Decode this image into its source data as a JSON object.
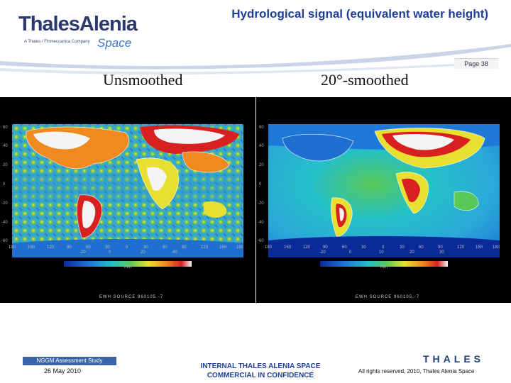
{
  "slide": {
    "title": "Hydrological  signal (equivalent water height)",
    "page_label": "Page 38",
    "column_titles": [
      "Unsmoothed",
      "20°-smoothed"
    ]
  },
  "logo": {
    "word": "ThalesAlenia",
    "sub": "A Thales / Finmeccanica Company",
    "space": "Space"
  },
  "panels": [
    {
      "y_ticks": [
        "60",
        "40",
        "20",
        "0",
        "-20",
        "-40",
        "-60"
      ],
      "x_ticks": [
        "180",
        "150",
        "120",
        "90",
        "60",
        "30",
        "0",
        "30",
        "60",
        "90",
        "120",
        "150",
        "180"
      ],
      "colorbar_ticks": [
        "-20",
        "0",
        "20",
        "40"
      ],
      "colorbar_unit": "mm",
      "source": "EWH SOURCE 960105.-7"
    },
    {
      "y_ticks": [
        "60",
        "40",
        "20",
        "0",
        "-20",
        "-40",
        "-60"
      ],
      "x_ticks": [
        "180",
        "150",
        "120",
        "90",
        "60",
        "30",
        "0",
        "30",
        "60",
        "90",
        "120",
        "150",
        "180"
      ],
      "colorbar_ticks": [
        "-20",
        "0",
        "10",
        "20",
        "30"
      ],
      "colorbar_unit": "mm",
      "source": "EWH SOURCE 960105.-7"
    }
  ],
  "footer": {
    "study": "NGGM Assessment Study",
    "date": "26 May 2010",
    "classification_line1": "INTERNAL THALES ALENIA SPACE",
    "classification_line2": "COMMERCIAL IN CONFIDENCE",
    "brand": "THALES",
    "rights": "All rights reserved, 2010, Thales Alenia Space"
  },
  "colors": {
    "title_blue": "#1f3f95",
    "footer_bar": "#3a63a8",
    "colormap": [
      "#0a2a9a",
      "#1e78d8",
      "#24c0c8",
      "#58c858",
      "#e8e030",
      "#f08a20",
      "#d82020",
      "#f4f4f4"
    ]
  }
}
